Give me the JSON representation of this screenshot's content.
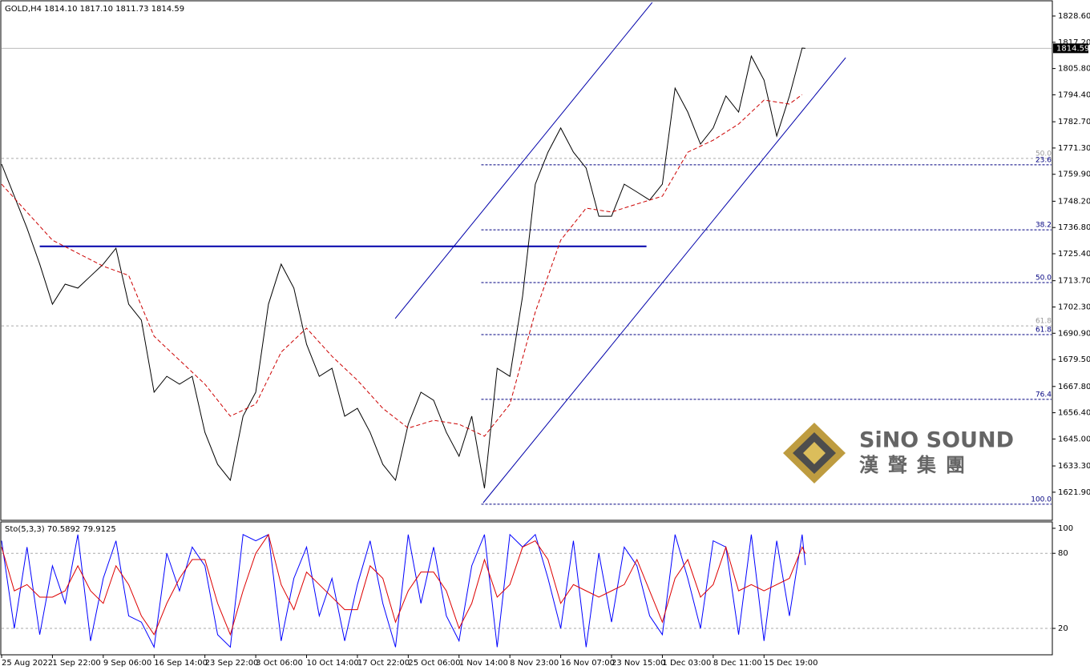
{
  "chart_data": [
    {
      "type": "line",
      "title": "GOLD,H4 1814.10 1817.10 1811.73 1814.59",
      "xlim": [
        0,
        330
      ],
      "xticks": [
        {
          "value": 0,
          "label": "25 Aug 2022"
        },
        {
          "value": 16,
          "label": "1 Sep 22:00"
        },
        {
          "value": 32,
          "label": "9 Sep 06:00"
        },
        {
          "value": 48,
          "label": "16 Sep 14:00"
        },
        {
          "value": 64,
          "label": "23 Sep 22:00"
        },
        {
          "value": 80,
          "label": "3 Oct 06:00"
        },
        {
          "value": 96,
          "label": "10 Oct 14:00"
        },
        {
          "value": 112,
          "label": "17 Oct 22:00"
        },
        {
          "value": 128,
          "label": "25 Oct 06:00"
        },
        {
          "value": 144,
          "label": "1 Nov 14:00"
        },
        {
          "value": 160,
          "label": "8 Nov 23:00"
        },
        {
          "value": 176,
          "label": "16 Nov 07:00"
        },
        {
          "value": 192,
          "label": "23 Nov 15:00"
        },
        {
          "value": 208,
          "label": "1 Dec 03:00"
        },
        {
          "value": 224,
          "label": "8 Dec 11:00"
        },
        {
          "value": 240,
          "label": "15 Dec 19:00"
        }
      ],
      "ylim": [
        1609.7,
        1835.55
      ],
      "yticks": [
        {
          "value": 1828.6,
          "label": "1828.60"
        },
        {
          "value": 1817.2,
          "label": "1817.20"
        },
        {
          "value": 1805.8,
          "label": "1805.80"
        },
        {
          "value": 1794.4,
          "label": "1794.40"
        },
        {
          "value": 1782.7,
          "label": "1782.70"
        },
        {
          "value": 1771.3,
          "label": "1771.30"
        },
        {
          "value": 1759.9,
          "label": "1759.90"
        },
        {
          "value": 1748.2,
          "label": "1748.20"
        },
        {
          "value": 1736.8,
          "label": "1736.80"
        },
        {
          "value": 1725.4,
          "label": "1725.40"
        },
        {
          "value": 1713.7,
          "label": "1713.70"
        },
        {
          "value": 1702.3,
          "label": "1702.30"
        },
        {
          "value": 1690.9,
          "label": "1690.90"
        },
        {
          "value": 1679.5,
          "label": "1679.50"
        },
        {
          "value": 1667.8,
          "label": "1667.80"
        },
        {
          "value": 1656.4,
          "label": "1656.40"
        },
        {
          "value": 1645,
          "label": "1645.00"
        },
        {
          "value": 1633.3,
          "label": "1633.30"
        },
        {
          "value": 1621.9,
          "label": "1621.90"
        }
      ],
      "last_price": 1814.59,
      "series": [
        {
          "color": "#000000",
          "x": [
            0,
            4,
            8,
            12,
            16,
            20,
            24,
            28,
            32,
            36,
            40,
            44,
            48,
            52,
            56,
            60,
            64,
            68,
            72,
            76,
            80,
            84,
            88,
            92,
            96,
            100,
            104,
            108,
            112,
            116,
            120,
            124,
            128,
            132,
            136,
            140,
            144,
            148,
            152,
            156,
            160,
            164,
            168,
            172,
            176,
            180,
            184,
            188,
            192,
            196,
            200,
            204,
            208,
            212,
            216,
            220,
            224,
            228,
            232,
            236,
            240,
            244,
            248,
            252,
            253
          ],
          "values": [
            1764.3,
            1750.4,
            1736.5,
            1720.9,
            1703.5,
            1712.2,
            1710.5,
            1715.7,
            1720.9,
            1727.8,
            1703.5,
            1696.6,
            1665.3,
            1672.2,
            1668.8,
            1672.2,
            1647.9,
            1634.0,
            1627.1,
            1654.9,
            1665.3,
            1703.5,
            1720.9,
            1710.5,
            1686.1,
            1672.2,
            1675.7,
            1654.9,
            1658.3,
            1647.9,
            1634.0,
            1627.1,
            1651.4,
            1665.3,
            1661.8,
            1647.9,
            1637.5,
            1654.9,
            1623.6,
            1675.7,
            1672.2,
            1707.0,
            1755.6,
            1769.5,
            1780.0,
            1769.5,
            1762.6,
            1741.7,
            1741.7,
            1755.6,
            1752.2,
            1748.7,
            1755.6,
            1797.3,
            1786.9,
            1773.0,
            1780.0,
            1793.9,
            1786.9,
            1811.2,
            1800.8,
            1776.5,
            1793.9,
            1814.7,
            1814.59
          ]
        },
        {
          "color": "#cc0000",
          "dash": true,
          "x": [
            0,
            16,
            32,
            40,
            48,
            56,
            64,
            72,
            80,
            88,
            96,
            104,
            112,
            120,
            128,
            136,
            144,
            152,
            160,
            168,
            176,
            184,
            192,
            200,
            208,
            216,
            224,
            232,
            240,
            248,
            252
          ],
          "values": [
            1755.6,
            1731.3,
            1720.0,
            1716.0,
            1689.6,
            1679.2,
            1668.8,
            1654.9,
            1660.1,
            1682.7,
            1693.1,
            1680.9,
            1670.5,
            1658.3,
            1649.7,
            1653.1,
            1651.4,
            1646.2,
            1660.1,
            1700.1,
            1731.3,
            1745.2,
            1743.5,
            1747.0,
            1750.4,
            1769.5,
            1774.7,
            1781.7,
            1792.1,
            1790.4,
            1794.5
          ]
        }
      ],
      "support": {
        "x": [
          12,
          203
        ],
        "y": 1728.6,
        "color": "#0000aa"
      },
      "channel": [
        {
          "x": [
            123.9,
            204.8
          ],
          "y": [
            1697.3,
            1834.5
          ],
          "color": "#0000aa"
        },
        {
          "x": [
            151.6,
            265.7
          ],
          "y": [
            1617.3,
            1810.5
          ],
          "color": "#0000aa"
        }
      ],
      "fib_levels": [
        {
          "label": "23.6",
          "value": 1764.0
        },
        {
          "label": "38.2",
          "value": 1735.8
        },
        {
          "label": "50.0",
          "value": 1712.9
        },
        {
          "label": "61.8",
          "value": 1690.3
        },
        {
          "label": "76.4",
          "value": 1662.2
        },
        {
          "label": "100.0",
          "value": 1616.7
        }
      ],
      "fib_start": 151,
      "reference_levels": [
        {
          "label": "50.0",
          "value": 1766.8
        },
        {
          "label": "61.8",
          "value": 1694.1
        }
      ]
    },
    {
      "type": "line",
      "title": "Sto(5,3,3) 70.5892 79.9125",
      "xlim": [
        0,
        330
      ],
      "ylim": [
        -1.1,
        105.1
      ],
      "yticks": [
        20,
        80,
        100
      ],
      "series": [
        {
          "color": "#0000ff",
          "x": [
            0,
            4,
            8,
            12,
            16,
            20,
            24,
            28,
            32,
            36,
            40,
            44,
            48,
            52,
            56,
            60,
            64,
            68,
            72,
            76,
            80,
            84,
            88,
            92,
            96,
            100,
            104,
            108,
            112,
            116,
            120,
            124,
            128,
            132,
            136,
            140,
            144,
            148,
            152,
            156,
            160,
            164,
            168,
            172,
            176,
            180,
            184,
            188,
            192,
            196,
            200,
            204,
            208,
            212,
            216,
            220,
            224,
            228,
            232,
            236,
            240,
            244,
            248,
            252,
            253
          ],
          "values": [
            90,
            20,
            85,
            15,
            70,
            40,
            95,
            10,
            60,
            90,
            30,
            25,
            5,
            80,
            50,
            85,
            70,
            15,
            5,
            95,
            90,
            95,
            10,
            60,
            85,
            30,
            60,
            10,
            55,
            90,
            40,
            5,
            95,
            40,
            85,
            30,
            10,
            70,
            95,
            5,
            95,
            85,
            95,
            60,
            20,
            90,
            5,
            80,
            25,
            85,
            70,
            30,
            15,
            95,
            60,
            20,
            90,
            85,
            15,
            95,
            10,
            90,
            30,
            95,
            70.5892
          ]
        },
        {
          "color": "#dd0000",
          "x": [
            0,
            4,
            8,
            12,
            16,
            20,
            24,
            28,
            32,
            36,
            40,
            44,
            48,
            52,
            56,
            60,
            64,
            68,
            72,
            76,
            80,
            84,
            88,
            92,
            96,
            100,
            104,
            108,
            112,
            116,
            120,
            124,
            128,
            132,
            136,
            140,
            144,
            148,
            152,
            156,
            160,
            164,
            168,
            172,
            176,
            180,
            184,
            188,
            192,
            196,
            200,
            204,
            208,
            212,
            216,
            220,
            224,
            228,
            232,
            236,
            240,
            244,
            248,
            252,
            253
          ],
          "values": [
            85,
            50,
            55,
            45,
            45,
            50,
            70,
            50,
            40,
            70,
            55,
            30,
            15,
            40,
            60,
            75,
            75,
            40,
            15,
            50,
            80,
            95,
            55,
            35,
            65,
            55,
            45,
            35,
            35,
            70,
            60,
            25,
            50,
            65,
            65,
            50,
            20,
            40,
            75,
            45,
            55,
            85,
            90,
            75,
            40,
            55,
            50,
            45,
            50,
            55,
            75,
            50,
            25,
            60,
            75,
            45,
            55,
            85,
            50,
            55,
            50,
            55,
            60,
            85,
            79.9125
          ]
        }
      ]
    }
  ],
  "watermark": {
    "name": "SiNO SOUND",
    "chinese": "漢聲集團"
  }
}
